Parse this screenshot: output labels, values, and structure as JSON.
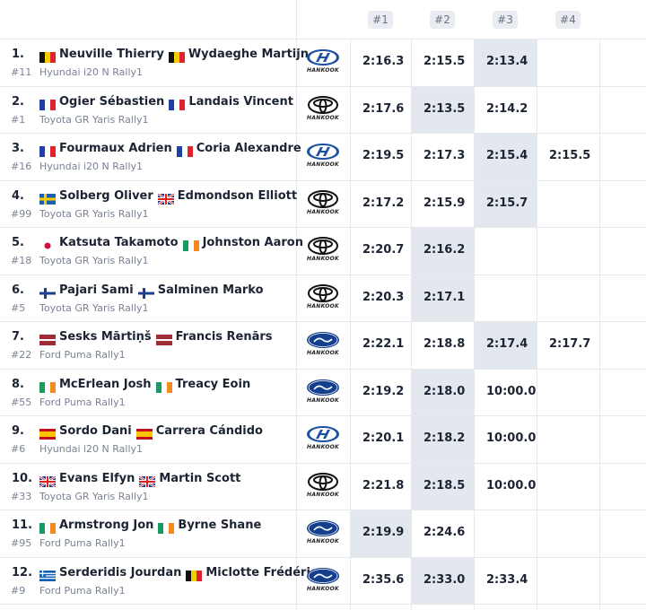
{
  "header": {
    "columns": [
      "#1",
      "#2",
      "#3",
      "#4"
    ]
  },
  "tyre_brand": "HANKOOK",
  "rows": [
    {
      "position": "1.",
      "crew": [
        "Neuville Thierry",
        "Wydaeghe Martijn"
      ],
      "number": "#11",
      "car": "Hyundai i20 N Rally1",
      "times": [
        "2:16.3",
        "2:15.5",
        "2:13.4"
      ]
    },
    {
      "position": "2.",
      "crew": [
        "Ogier Sébastien",
        "Landais Vincent"
      ],
      "number": "#1",
      "car": "Toyota GR Yaris Rally1",
      "times": [
        "2:17.6",
        "2:13.5",
        "2:14.2"
      ]
    },
    {
      "position": "3.",
      "crew": [
        "Fourmaux Adrien",
        "Coria Alexandre"
      ],
      "number": "#16",
      "car": "Hyundai i20 N Rally1",
      "times": [
        "2:19.5",
        "2:17.3",
        "2:15.4",
        "2:15.5"
      ]
    },
    {
      "position": "4.",
      "crew": [
        "Solberg Oliver",
        "Edmondson Elliott"
      ],
      "number": "#99",
      "car": "Toyota GR Yaris Rally1",
      "times": [
        "2:17.2",
        "2:15.9",
        "2:15.7"
      ]
    },
    {
      "position": "5.",
      "crew": [
        "Katsuta Takamoto",
        "Johnston Aaron"
      ],
      "number": "#18",
      "car": "Toyota GR Yaris Rally1",
      "times": [
        "2:20.7",
        "2:16.2"
      ]
    },
    {
      "position": "6.",
      "crew": [
        "Pajari Sami",
        "Salminen Marko"
      ],
      "number": "#5",
      "car": "Toyota GR Yaris Rally1",
      "times": [
        "2:20.3",
        "2:17.1"
      ]
    },
    {
      "position": "7.",
      "crew": [
        "Sesks Mārtiņš",
        "Francis Renārs"
      ],
      "number": "#22",
      "car": "Ford Puma Rally1",
      "times": [
        "2:22.1",
        "2:18.8",
        "2:17.4",
        "2:17.7"
      ]
    },
    {
      "position": "8.",
      "crew": [
        "McErlean Josh",
        "Treacy Eoin"
      ],
      "number": "#55",
      "car": "Ford Puma Rally1",
      "times": [
        "2:19.2",
        "2:18.0",
        "10:00.0"
      ]
    },
    {
      "position": "9.",
      "crew": [
        "Sordo Dani",
        "Carrera Cándido"
      ],
      "number": "#6",
      "car": "Hyundai i20 N Rally1",
      "times": [
        "2:20.1",
        "2:18.2",
        "10:00.0"
      ]
    },
    {
      "position": "10.",
      "crew": [
        "Evans Elfyn",
        "Martin Scott"
      ],
      "number": "#33",
      "car": "Toyota GR Yaris Rally1",
      "times": [
        "2:21.8",
        "2:18.5",
        "10:00.0"
      ]
    },
    {
      "position": "11.",
      "crew": [
        "Armstrong Jon",
        "Byrne Shane"
      ],
      "number": "#95",
      "car": "Ford Puma Rally1",
      "times": [
        "2:19.9",
        "2:24.6"
      ]
    },
    {
      "position": "12.",
      "crew": [
        "Serderidis Jourdan",
        "Miclotte Frédéric"
      ],
      "number": "#9",
      "car": "Ford Puma Rally1",
      "times": [
        "2:35.6",
        "2:33.0",
        "2:33.4"
      ]
    }
  ]
}
